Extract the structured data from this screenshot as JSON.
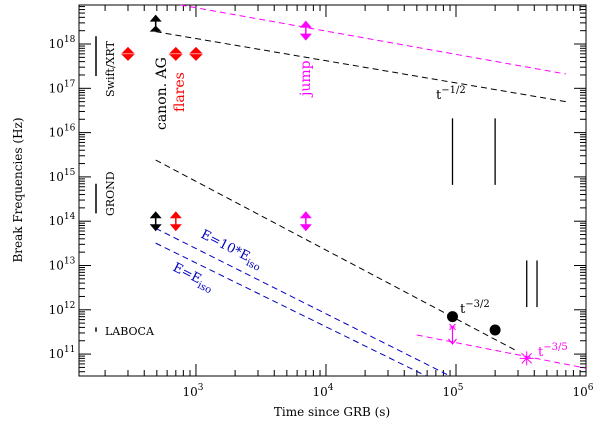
{
  "chart_data": {
    "type": "scatter",
    "xlabel": "Time since GRB (s)",
    "ylabel": "Break Frequencies (Hz)",
    "xscale": "log",
    "yscale": "log",
    "xlim": [
      126,
      1000000
    ],
    "ylim": [
      32000000000.0,
      7.6e+18
    ],
    "x_tick_labels": [
      "10^3",
      "10^4",
      "10^5",
      "10^6"
    ],
    "x_ticks": [
      1000,
      10000,
      100000,
      1000000
    ],
    "y_tick_labels": [
      "10^11",
      "10^12",
      "10^13",
      "10^14",
      "10^15",
      "10^16",
      "10^17",
      "10^18"
    ],
    "y_ticks": [
      100000000000.0,
      1000000000000.0,
      10000000000000.0,
      100000000000000.0,
      1000000000000000.0,
      1e+16,
      1e+17,
      1e+18
    ],
    "grid": false,
    "colors": {
      "black": "#000000",
      "red": "#ff0000",
      "magenta": "#ff00ff",
      "blue": "#0000c0"
    },
    "band_labels": [
      {
        "text": "Swift/XRT",
        "range": [
          1.9e+17,
          1.5e+18
        ]
      },
      {
        "text": "GROND",
        "range": [
          150000000000000.0,
          700000000000000.0
        ]
      },
      {
        "text": "LABOCA",
        "range": [
          320000000000.0,
          400000000000.0
        ]
      }
    ],
    "series": [
      {
        "name": "flares",
        "color": "#ff0000",
        "marker": "diamond",
        "points": [
          [
            300,
            6e+17
          ],
          [
            700,
            6e+17
          ],
          [
            1000,
            6e+17
          ]
        ]
      },
      {
        "name": "canon. AG",
        "color": "#000000",
        "marker": "arrow-up",
        "points": [
          [
            490,
            1.9e+18
          ]
        ]
      },
      {
        "name": "jump",
        "color": "#ff00ff",
        "marker": "arrow-both",
        "points": [
          [
            7000,
            2e+18
          ]
        ]
      },
      {
        "color": "#000000",
        "marker": "arrow-both",
        "points": [
          [
            490,
            100000000000000.0
          ]
        ]
      },
      {
        "color": "#ff0000",
        "marker": "arrow-both",
        "points": [
          [
            700,
            100000000000000.0
          ]
        ]
      },
      {
        "color": "#ff00ff",
        "marker": "arrow-both",
        "points": [
          [
            7000,
            100000000000000.0
          ]
        ]
      },
      {
        "color": "#000000",
        "marker": "circle",
        "points": [
          [
            94000,
            700000000000.0
          ],
          [
            200000,
            350000000000.0
          ]
        ]
      },
      {
        "color": "#ff00ff",
        "marker": "arrow-down",
        "points": [
          [
            94000,
            300000000000.0
          ]
        ]
      },
      {
        "color": "#ff00ff",
        "marker": "star",
        "points": [
          [
            350000,
            80000000000.0
          ]
        ]
      }
    ],
    "lines": [
      {
        "label": "t^-1/2",
        "color": "#000000",
        "dash": true,
        "points": [
          [
            490,
            1.9e+18
          ],
          [
            700000,
            5e+16
          ]
        ]
      },
      {
        "color": "#ff00ff",
        "dash": true,
        "points": [
          [
            760,
            7.6e+18
          ],
          [
            700000,
            2.1e+17
          ]
        ]
      },
      {
        "label": "t^-3/2",
        "color": "#000000",
        "dash": true,
        "points": [
          [
            490,
            2400000000000000.0
          ],
          [
            290000,
            120000000000.0
          ]
        ]
      },
      {
        "label": "E=10*E_iso",
        "color": "#0000c0",
        "dash": true,
        "points": [
          [
            490,
            69000000000000.0
          ],
          [
            90000,
            32000000000.0
          ]
        ]
      },
      {
        "label": "E=E_iso",
        "color": "#0000c0",
        "dash": true,
        "points": [
          [
            490,
            32000000000000.0
          ],
          [
            59000,
            32000000000.0
          ]
        ]
      },
      {
        "label": "t^-3/5",
        "color": "#ff00ff",
        "dash": true,
        "points": [
          [
            50000,
            270000000000.0
          ],
          [
            1000000,
            48000000000.0
          ]
        ]
      }
    ],
    "vertical_segments": [
      {
        "x": 94000,
        "y": [
          660000000000000.0,
          2.1e+16
        ],
        "color": "#000000"
      },
      {
        "x": 200000,
        "y": [
          660000000000000.0,
          2.1e+16
        ],
        "color": "#000000"
      },
      {
        "x": 350000,
        "y": [
          1150000000000.0,
          13000000000000.0
        ],
        "color": "#000000"
      },
      {
        "x": 420000,
        "y": [
          1150000000000.0,
          13000000000000.0
        ],
        "color": "#000000"
      }
    ],
    "annotations": {
      "canon": "canon. AG",
      "flares": "flares",
      "jump": "jump",
      "t_half": "t",
      "t_half_exp": "−1/2",
      "t_32": "t",
      "t_32_exp": "−3/2",
      "t_35": "t",
      "t_35_exp": "−3/5",
      "e10_main": "E=10*E",
      "e10_sub": "iso",
      "e1_main": "E=E",
      "e1_sub": "iso"
    }
  }
}
